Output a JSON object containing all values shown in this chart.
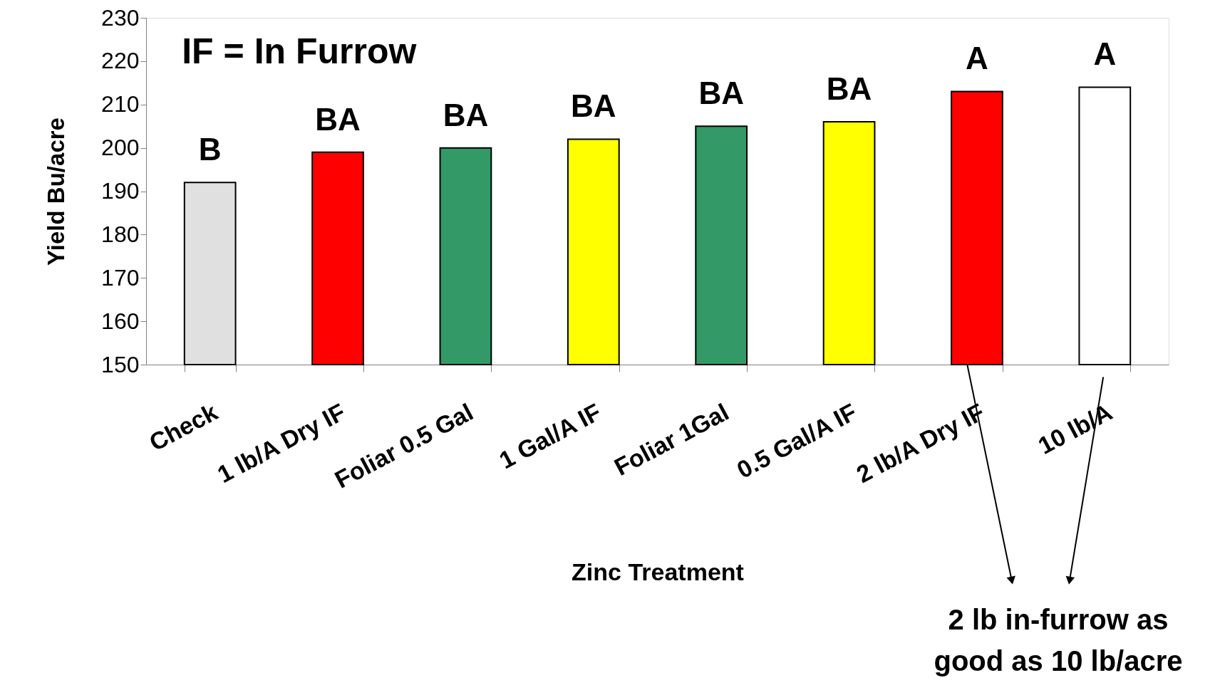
{
  "chart_data": {
    "type": "bar",
    "xlabel": "Zinc Treatment",
    "ylabel": "Yield Bu/acre",
    "categories": [
      "Check",
      "1 lb/A Dry IF",
      "Foliar 0.5 Gal",
      "1 Gal/A IF",
      "Foliar 1Gal",
      "0.5 Gal/A IF",
      "2 lb/A Dry IF",
      "10 lb/A"
    ],
    "values": [
      192,
      199,
      200,
      202,
      205,
      206,
      213,
      214
    ],
    "colors": [
      "#e0e0e0",
      "#ff0000",
      "#339966",
      "#ffff00",
      "#339966",
      "#ffff00",
      "#ff0000",
      "#ffffff"
    ],
    "ylim": [
      150,
      230
    ],
    "yticks": [
      150,
      160,
      170,
      180,
      190,
      200,
      210,
      220,
      230
    ],
    "grid": false,
    "annotations": [
      "IF = In Furrow",
      "2 lb in-furrow as\ngood as 10 lb/acre",
      "B",
      "BA",
      "BA",
      "BA",
      "BA",
      "BA",
      "A",
      "A"
    ]
  }
}
